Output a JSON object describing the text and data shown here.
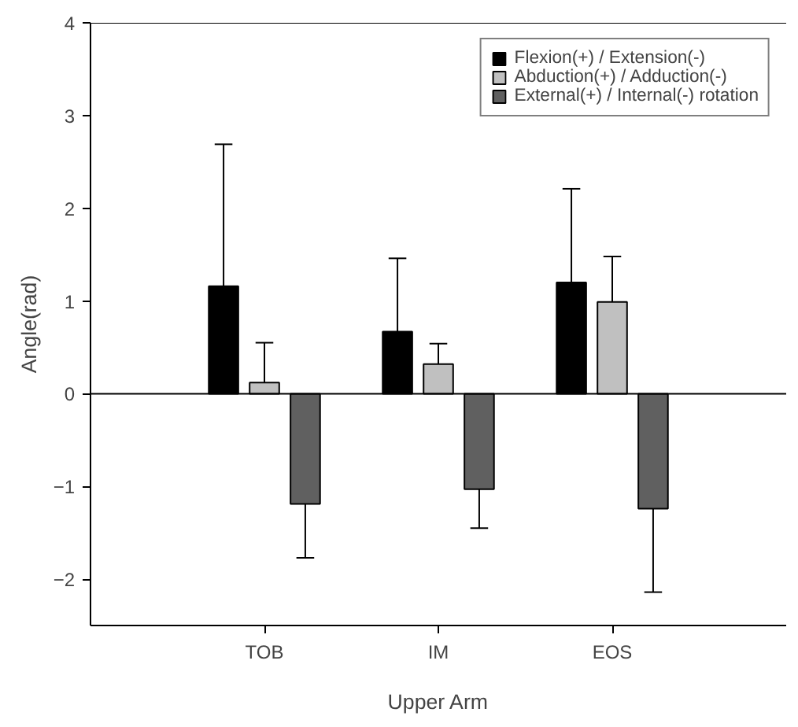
{
  "chart_data": {
    "type": "bar",
    "xlabel": "Upper Arm",
    "ylabel": "Angle(rad)",
    "categories": [
      "TOB",
      "IM",
      "EOS"
    ],
    "series": [
      {
        "name": "Flexion(+) / Extension(-)",
        "color": "#000000",
        "values": [
          1.16,
          0.67,
          1.2
        ],
        "errors": [
          [
            1.16,
            2.69
          ],
          [
            0.67,
            1.46
          ],
          [
            1.2,
            2.21
          ]
        ]
      },
      {
        "name": "Abduction(+) / Adduction(-)",
        "color": "#c0c0c0",
        "values": [
          0.12,
          0.32,
          0.99
        ],
        "errors": [
          [
            0.12,
            0.55
          ],
          [
            0.32,
            0.54
          ],
          [
            0.99,
            1.48
          ]
        ]
      },
      {
        "name": "External(+) / Internal(-) rotation",
        "color": "#606060",
        "values": [
          -1.19,
          -1.03,
          -1.24
        ],
        "errors": [
          [
            -1.77,
            -1.19
          ],
          [
            -1.45,
            -1.03
          ],
          [
            -2.14,
            -1.24
          ]
        ]
      }
    ],
    "ylim": [
      -2.5,
      4
    ],
    "yticks": [
      -2,
      -1,
      0,
      1,
      2,
      3,
      4
    ],
    "ref_lines": [
      {
        "axis": "y",
        "value": 0,
        "label": null,
        "color": "#000000"
      }
    ],
    "legend": "top right",
    "grid": false
  }
}
